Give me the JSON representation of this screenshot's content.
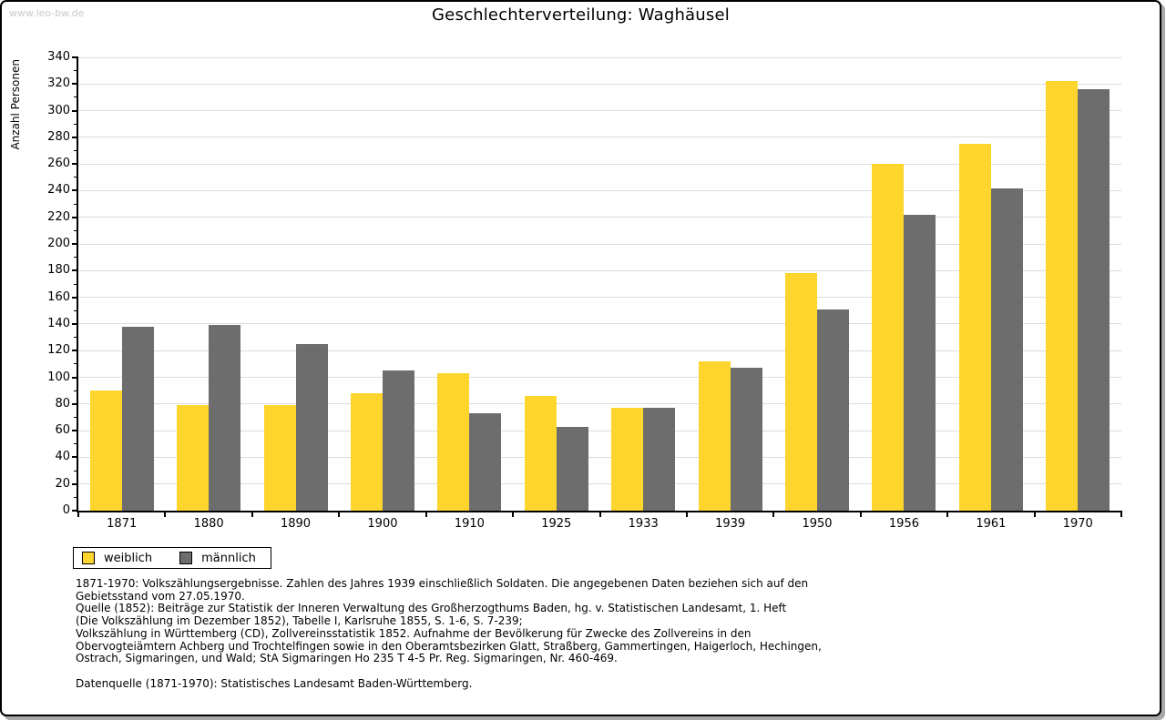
{
  "watermark": "www.leo-bw.de",
  "title": "Geschlechterverteilung: Waghäusel",
  "y_axis_label": "Anzahl Personen",
  "legend": {
    "items": [
      {
        "label": "weiblich",
        "color": "#FDD52D"
      },
      {
        "label": "männlich",
        "color": "#6D6D6D"
      }
    ]
  },
  "footnotes": {
    "lines": [
      "1871-1970: Volkszählungsergebnisse. Zahlen des Jahres 1939 einschließlich Soldaten. Die angegebenen Daten beziehen sich auf den",
      "Gebietsstand vom 27.05.1970.",
      "Quelle (1852): Beiträge zur Statistik der Inneren Verwaltung des Großherzogthums Baden, hg. v. Statistischen Landesamt, 1. Heft",
      "(Die Volkszählung im Dezember 1852), Tabelle I, Karlsruhe 1855, S. 1-6, S. 7-239;",
      "Volkszählung in Württemberg (CD), Zollvereinsstatistik 1852. Aufnahme der Bevölkerung für Zwecke des Zollvereins in den",
      "Obervogteiämtern Achberg und Trochtelfingen sowie in den Oberamtsbezirken Glatt, Straßberg, Gammertingen, Haigerloch, Hechingen,",
      "Ostrach, Sigmaringen, und Wald; StA Sigmaringen Ho 235 T 4-5 Pr. Reg. Sigmaringen, Nr. 460-469."
    ],
    "datasource": "Datenquelle (1871-1970): Statistisches Landesamt Baden-Württemberg."
  },
  "chart_data": {
    "type": "bar",
    "title": "Geschlechterverteilung: Waghäusel",
    "xlabel": "",
    "ylabel": "Anzahl Personen",
    "categories": [
      "1871",
      "1880",
      "1890",
      "1900",
      "1910",
      "1925",
      "1933",
      "1939",
      "1950",
      "1956",
      "1961",
      "1970"
    ],
    "series": [
      {
        "name": "weiblich",
        "color": "#FDD52D",
        "values": [
          90,
          79,
          79,
          88,
          103,
          86,
          77,
          112,
          178,
          260,
          275,
          322
        ]
      },
      {
        "name": "männlich",
        "color": "#6D6D6D",
        "values": [
          138,
          139,
          125,
          105,
          73,
          63,
          77,
          107,
          151,
          222,
          242,
          316
        ]
      }
    ],
    "ylim": [
      0,
      340
    ],
    "ytick_step": 20,
    "yminortick_step": 10,
    "grid": true,
    "gridline_color": "#dcdcdc",
    "legend_position": "bottom-left"
  }
}
